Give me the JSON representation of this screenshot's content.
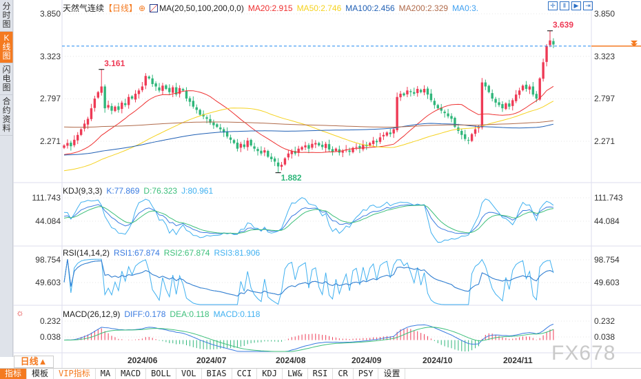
{
  "sidebar": {
    "tabs": [
      {
        "label": "分时图",
        "active": false
      },
      {
        "label": "K线图",
        "active": true
      },
      {
        "label": "闪电图",
        "active": false
      },
      {
        "label": "合约资料",
        "active": false
      }
    ]
  },
  "header": {
    "symbol": "天然气连续",
    "period": "【日线】",
    "ma_label": "MA(20,50,100,200,0,0)",
    "ma20": "MA20:2.915",
    "ma50": "MA50:2.746",
    "ma100": "MA100:2.456",
    "ma200": "MA200:2.329",
    "ma0": "MA0:3."
  },
  "kdj": {
    "label": "KDJ(9,3,3)",
    "k": "K:77.869",
    "d": "D:76.323",
    "j": "J:80.961",
    "ticks": [
      "111.743",
      "44.084"
    ]
  },
  "rsi": {
    "label": "RSI(14,14,2)",
    "rsi1": "RSI1:67.874",
    "rsi2": "RSI2:67.874",
    "rsi3": "RSI3:81.906",
    "ticks": [
      "98.754",
      "49.603"
    ]
  },
  "macd": {
    "label": "MACD(26,12,9)",
    "diff": "DIFF:0.178",
    "dea": "DEA:0.118",
    "macd": "MACD:0.118",
    "ticks": [
      "0.232",
      "0.038"
    ]
  },
  "price_ticks": [
    "3.850",
    "3.323",
    "2.797",
    "2.271"
  ],
  "period_button": "日线▲",
  "dates": [
    "2024/06",
    "2024/07",
    "2024/08",
    "2024/09",
    "2024/10",
    "2024/11"
  ],
  "toolbar": [
    "指标",
    "模板",
    "VIP指标",
    "MA",
    "MACD",
    "BOLL",
    "VOL",
    "BIAS",
    "CCI",
    "KDJ",
    "LW&",
    "RSI",
    "CR",
    "PSY",
    "设置"
  ],
  "watermark": "FX678",
  "colors": {
    "up": "#ee3a55",
    "down": "#2fb67a",
    "ma20": "#ee3030",
    "ma50": "#f5d21f",
    "ma100": "#1f5fb4",
    "ma200": "#b06a4a",
    "accent": "#f47a20",
    "blue": "#3fa0f0"
  },
  "chart_data": {
    "type": "candlestick",
    "title": "天然气连续 日线",
    "ylim": [
      1.785,
      3.95
    ],
    "current_price": 3.45,
    "annotations": [
      {
        "label": "3.161",
        "index": 11,
        "kind": "high",
        "value": 3.161
      },
      {
        "label": "1.882",
        "index": 63,
        "kind": "low",
        "value": 1.882
      },
      {
        "label": "3.639",
        "index": 143,
        "kind": "high",
        "value": 3.639
      }
    ],
    "closes": [
      2.22,
      2.25,
      2.21,
      2.29,
      2.35,
      2.42,
      2.49,
      2.55,
      2.68,
      2.8,
      2.88,
      2.95,
      2.68,
      2.72,
      2.65,
      2.7,
      2.66,
      2.75,
      2.72,
      2.82,
      2.8,
      2.86,
      2.9,
      2.95,
      3.08,
      3.05,
      2.98,
      2.95,
      2.9,
      2.96,
      2.92,
      2.88,
      2.94,
      2.85,
      2.93,
      2.9,
      2.8,
      2.76,
      2.7,
      2.66,
      2.6,
      2.58,
      2.55,
      2.5,
      2.47,
      2.45,
      2.42,
      2.38,
      2.33,
      2.29,
      2.25,
      2.18,
      2.24,
      2.2,
      2.28,
      2.22,
      2.18,
      2.15,
      2.12,
      2.16,
      2.08,
      2.05,
      2.02,
      1.96,
      1.98,
      2.06,
      2.12,
      2.15,
      2.12,
      2.18,
      2.2,
      2.22,
      2.18,
      2.24,
      2.25,
      2.22,
      2.2,
      2.24,
      2.17,
      2.14,
      2.18,
      2.13,
      2.15,
      2.17,
      2.14,
      2.19,
      2.2,
      2.18,
      2.23,
      2.21,
      2.25,
      2.28,
      2.26,
      2.32,
      2.35,
      2.38,
      2.36,
      2.42,
      2.82,
      2.86,
      2.84,
      2.9,
      2.88,
      2.86,
      2.92,
      2.88,
      2.92,
      2.85,
      2.78,
      2.72,
      2.68,
      2.65,
      2.62,
      2.58,
      2.55,
      2.45,
      2.4,
      2.35,
      2.3,
      2.28,
      2.36,
      2.42,
      2.45,
      3.0,
      2.95,
      2.88,
      2.8,
      2.75,
      2.72,
      2.68,
      2.74,
      2.7,
      2.78,
      2.85,
      2.9,
      2.96,
      2.92,
      2.95,
      2.85,
      2.8,
      3.05,
      3.25,
      3.45,
      3.52,
      3.47
    ]
  }
}
